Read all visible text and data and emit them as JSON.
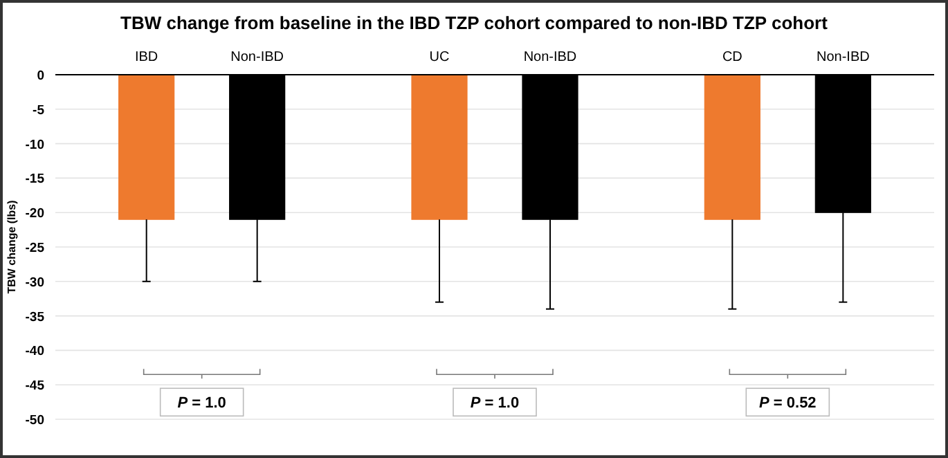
{
  "chart_data": {
    "type": "bar",
    "title": "TBW change from baseline in the IBD TZP cohort compared to non-IBD TZP cohort",
    "ylabel": "TBW change (lbs)",
    "categories": [
      "IBD",
      "Non-IBD",
      "UC",
      "Non-IBD",
      "CD",
      "Non-IBD"
    ],
    "values": [
      -21,
      -21,
      -21,
      -21,
      -21,
      -20
    ],
    "colors": [
      "#ee7a2e",
      "#000000",
      "#ee7a2e",
      "#000000",
      "#ee7a2e",
      "#000000"
    ],
    "errors": [
      [
        -30,
        -21
      ],
      [
        -30,
        -21
      ],
      [
        -33,
        -21
      ],
      [
        -34,
        -21
      ],
      [
        -34,
        -21
      ],
      [
        -33,
        -20
      ]
    ],
    "ylim": [
      -50,
      0
    ],
    "yticks": [
      -50,
      -45,
      -40,
      -35,
      -30,
      -25,
      -20,
      -15,
      -10,
      -5,
      0
    ],
    "grid": "y",
    "annotations": [
      "P = 1.0",
      "P = 1.0",
      "P = 0.52"
    ]
  }
}
